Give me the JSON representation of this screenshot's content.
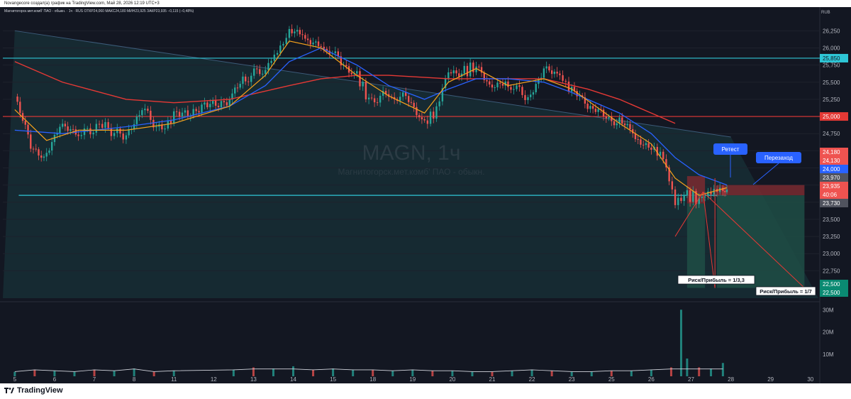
{
  "header": {
    "text": "Novangecore создал(а) график на TradingView.com, Май 28, 2026 12:19 UTC+3"
  },
  "legend": {
    "text": "Магнитогорск.мет.комб' ПАО - обыкн. · 1ч · RUS  ОТКР24,060  МАКС24,180  МИН23,925  ЗАКР23,935  −0,115 (−0,48%)"
  },
  "currency": "RUB",
  "watermark": {
    "symbol": "MAGN, 1ч",
    "name": "Магнитогорск.мет.комб' ПАО - обыкн."
  },
  "brand": "TradingView",
  "colors": {
    "background": "#131722",
    "up": "#26a69a",
    "down": "#ef5350",
    "cyan_line": "#2ec6d6",
    "red_line": "#e53935",
    "ema_fast": "#f7a21b",
    "ema_mid": "#2962ff",
    "ema_slow": "#e53935",
    "annotation_box": "#2962ff",
    "target_zone": "#1e4d45",
    "stop_zone": "#7a2a30"
  },
  "annotations": {
    "retest": "Ретест",
    "reentry": "Перезаход",
    "rr1": "Риск/Прибыль = 1/3,3",
    "rr2": "Риск/Прибыль = 1/7"
  },
  "chart_data": {
    "type": "candlestick",
    "title": "MAGN, 1ч",
    "y_axis": {
      "range": [
        22350,
        26450
      ],
      "ticks": [
        22750,
        23000,
        23250,
        23500,
        23750,
        24000,
        24250,
        24500,
        24750,
        25000,
        25250,
        25500,
        25750,
        26000,
        26250
      ]
    },
    "x_axis": {
      "ticks": [
        "5",
        "6",
        "7",
        "8",
        "11",
        "12",
        "13",
        "14",
        "15",
        "18",
        "19",
        "20",
        "21",
        "22",
        "23",
        "25",
        "26",
        "27",
        "28",
        "29",
        "30"
      ]
    },
    "volume_axis": {
      "ticks": [
        "10M",
        "20M",
        "30M"
      ],
      "range_millions": [
        0,
        32
      ]
    },
    "horizontal_levels": [
      {
        "price": 25850,
        "label": "25,850",
        "color": "cyan"
      },
      {
        "price": 25000,
        "label": "25,000",
        "color": "red"
      },
      {
        "price": 23850,
        "label": "",
        "color": "cyan"
      }
    ],
    "price_labels": [
      {
        "price": 24180,
        "text": "24,180",
        "kind": "stop"
      },
      {
        "price": 24130,
        "text": "24,130",
        "kind": "stop"
      },
      {
        "price": 24000,
        "text": "24,000",
        "kind": "blue"
      },
      {
        "price": 23970,
        "text": "23,970",
        "kind": "grey"
      },
      {
        "price": 23935,
        "text": "23,935",
        "kind": "last"
      },
      {
        "price": 23730,
        "text": "23,730",
        "kind": "grey"
      },
      {
        "price": 22500,
        "text": "22,500",
        "kind": "target"
      },
      {
        "price": 22500,
        "text": "22,500",
        "kind": "target"
      }
    ],
    "countdown": "40:06",
    "price_series": [
      [
        5,
        25300
      ],
      [
        5.4,
        24600
      ],
      [
        5.8,
        24400
      ],
      [
        6.2,
        24900
      ],
      [
        6.6,
        24750
      ],
      [
        7.2,
        24850
      ],
      [
        7.8,
        24700
      ],
      [
        8.2,
        25100
      ],
      [
        8.7,
        24800
      ],
      [
        9.0,
        25000
      ],
      [
        10.4,
        25250
      ],
      [
        10.8,
        25550
      ],
      [
        11.3,
        25700
      ],
      [
        11.6,
        25950
      ],
      [
        11.9,
        26200
      ],
      [
        12.3,
        26150
      ],
      [
        12.7,
        26050
      ],
      [
        13.2,
        25800
      ],
      [
        13.6,
        25600
      ],
      [
        13.9,
        25250
      ],
      [
        14.4,
        25300
      ],
      [
        14.9,
        25250
      ],
      [
        15.3,
        24900
      ],
      [
        15.6,
        25100
      ],
      [
        15.9,
        25700
      ],
      [
        16.3,
        25650
      ],
      [
        16.6,
        25750
      ],
      [
        17.0,
        25400
      ],
      [
        17.4,
        25450
      ],
      [
        17.9,
        25300
      ],
      [
        18.3,
        25700
      ],
      [
        18.7,
        25600
      ],
      [
        19.0,
        25350
      ],
      [
        19.4,
        25150
      ],
      [
        19.8,
        25050
      ],
      [
        20.2,
        24900
      ],
      [
        20.6,
        24700
      ],
      [
        21.0,
        24550
      ],
      [
        21.3,
        24400
      ],
      [
        21.6,
        23750
      ],
      [
        21.9,
        23850
      ],
      [
        22.2,
        23800
      ],
      [
        22.5,
        23900
      ],
      [
        22.8,
        23950
      ],
      [
        22.9,
        23935
      ]
    ],
    "ema_fast_series": [
      [
        5,
        25100
      ],
      [
        5.8,
        24650
      ],
      [
        6.6,
        24800
      ],
      [
        7.8,
        24800
      ],
      [
        9.0,
        24900
      ],
      [
        10.4,
        25150
      ],
      [
        11.3,
        25600
      ],
      [
        11.9,
        26100
      ],
      [
        12.7,
        26000
      ],
      [
        13.6,
        25600
      ],
      [
        14.4,
        25300
      ],
      [
        15.3,
        25050
      ],
      [
        15.9,
        25500
      ],
      [
        16.6,
        25700
      ],
      [
        17.4,
        25450
      ],
      [
        18.3,
        25550
      ],
      [
        19.0,
        25400
      ],
      [
        20.2,
        24900
      ],
      [
        21.0,
        24600
      ],
      [
        21.6,
        24100
      ],
      [
        22.2,
        23850
      ],
      [
        22.9,
        23960
      ]
    ],
    "ema_mid_series": [
      [
        5,
        24800
      ],
      [
        6.2,
        24750
      ],
      [
        7.8,
        24850
      ],
      [
        9.0,
        24950
      ],
      [
        10.4,
        25150
      ],
      [
        11.3,
        25450
      ],
      [
        11.9,
        25800
      ],
      [
        12.7,
        26000
      ],
      [
        13.6,
        25750
      ],
      [
        14.4,
        25450
      ],
      [
        15.3,
        25250
      ],
      [
        15.9,
        25400
      ],
      [
        16.6,
        25550
      ],
      [
        17.4,
        25550
      ],
      [
        18.3,
        25500
      ],
      [
        19.0,
        25350
      ],
      [
        20.2,
        25050
      ],
      [
        21.0,
        24750
      ],
      [
        21.6,
        24400
      ],
      [
        22.2,
        24150
      ],
      [
        22.9,
        24000
      ]
    ],
    "ema_slow_series": [
      [
        5,
        25800
      ],
      [
        6.2,
        25500
      ],
      [
        7.8,
        25250
      ],
      [
        9.0,
        25200
      ],
      [
        10.4,
        25250
      ],
      [
        11.9,
        25450
      ],
      [
        12.7,
        25550
      ],
      [
        13.6,
        25600
      ],
      [
        14.4,
        25600
      ],
      [
        15.9,
        25550
      ],
      [
        17.4,
        25550
      ],
      [
        18.3,
        25550
      ],
      [
        19.4,
        25400
      ],
      [
        20.2,
        25250
      ],
      [
        21.0,
        25050
      ],
      [
        21.6,
        24900
      ]
    ],
    "trendline": [
      [
        5,
        26250
      ],
      [
        23.0,
        24700
      ]
    ],
    "volume_series": [
      [
        5,
        2
      ],
      [
        5.5,
        3
      ],
      [
        6,
        2.5
      ],
      [
        6.5,
        2
      ],
      [
        7,
        3
      ],
      [
        7.5,
        2.5
      ],
      [
        8,
        3.5
      ],
      [
        8.5,
        2
      ],
      [
        9,
        2.5
      ],
      [
        10.5,
        3
      ],
      [
        11,
        4
      ],
      [
        11.5,
        3.5
      ],
      [
        12,
        4.5
      ],
      [
        12.5,
        3
      ],
      [
        13,
        3.5
      ],
      [
        13.5,
        3
      ],
      [
        14,
        3
      ],
      [
        14.5,
        2.5
      ],
      [
        15,
        3
      ],
      [
        15.5,
        2.5
      ],
      [
        16,
        2.5
      ],
      [
        16.5,
        2
      ],
      [
        17,
        2
      ],
      [
        17.5,
        2.5
      ],
      [
        18,
        3
      ],
      [
        18.5,
        2.5
      ],
      [
        19,
        2
      ],
      [
        19.5,
        2
      ],
      [
        20,
        2.5
      ],
      [
        20.5,
        2.5
      ],
      [
        21,
        3
      ],
      [
        21.5,
        4
      ],
      [
        21.75,
        30
      ],
      [
        21.9,
        8
      ],
      [
        22.2,
        4
      ],
      [
        22.5,
        3.5
      ],
      [
        22.8,
        6
      ]
    ]
  }
}
